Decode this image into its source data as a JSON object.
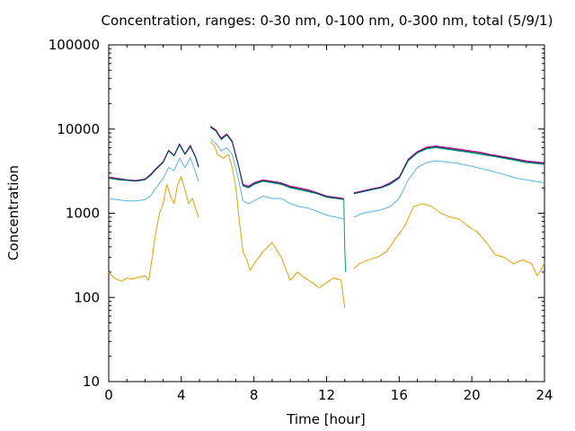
{
  "chart_data": {
    "type": "line",
    "title": "Concentration, ranges: 0-30 nm, 0-100 nm, 0-300 nm, total (5/9/1)",
    "xlabel": "Time [hour]",
    "ylabel": "Concentration",
    "xlim": [
      0,
      24
    ],
    "ylim": [
      10,
      100000
    ],
    "yscale": "log",
    "grid": false,
    "xticks": [
      "0",
      "4",
      "8",
      "12",
      "16",
      "20",
      "24"
    ],
    "xtick_values": [
      0,
      4,
      8,
      12,
      16,
      20,
      24
    ],
    "yticks": [
      "10",
      "100",
      "1000",
      "10000",
      "100000"
    ],
    "ytick_values": [
      10,
      100,
      1000,
      10000,
      100000
    ],
    "series": [
      {
        "color": "#e69f00",
        "x": [
          0,
          0.3,
          0.7,
          1.0,
          1.3,
          1.7,
          2.0,
          2.2,
          2.4,
          2.6,
          2.8,
          3.0,
          3.2,
          3.4,
          3.6,
          3.8,
          4.0,
          4.2,
          4.4,
          4.6,
          4.8,
          4.95,
          null,
          5.6,
          5.8,
          6.0,
          6.3,
          6.6,
          6.8,
          7.0,
          7.2,
          7.4,
          7.6,
          7.8,
          8.0,
          8.5,
          9.0,
          9.5,
          10.0,
          10.4,
          10.8,
          11.2,
          11.6,
          12.0,
          12.4,
          12.8,
          13.0,
          null,
          13.5,
          13.8,
          14.3,
          14.8,
          15.3,
          15.8,
          16.3,
          16.8,
          17.3,
          17.8,
          18.3,
          18.8,
          19.3,
          19.8,
          20.3,
          20.8,
          21.3,
          21.8,
          22.3,
          22.8,
          23.3,
          23.6,
          23.8,
          24.0
        ],
        "y": [
          200,
          170,
          155,
          170,
          165,
          175,
          180,
          160,
          300,
          600,
          1000,
          1300,
          2200,
          1600,
          1300,
          2200,
          2700,
          1900,
          1300,
          1500,
          1100,
          900,
          null,
          7000,
          6500,
          5000,
          4500,
          5000,
          3500,
          2000,
          800,
          350,
          280,
          210,
          250,
          350,
          450,
          300,
          160,
          200,
          170,
          150,
          130,
          150,
          170,
          160,
          75,
          null,
          220,
          250,
          280,
          300,
          350,
          500,
          700,
          1200,
          1300,
          1200,
          1000,
          900,
          850,
          700,
          600,
          450,
          320,
          300,
          250,
          280,
          250,
          180,
          210,
          260
        ]
      },
      {
        "color": "#56b4e9",
        "x": [
          0,
          0.5,
          1.0,
          1.5,
          2.0,
          2.3,
          2.6,
          3.0,
          3.3,
          3.6,
          3.9,
          4.2,
          4.5,
          4.8,
          4.95,
          null,
          5.6,
          5.9,
          6.2,
          6.5,
          6.8,
          7.1,
          7.4,
          7.7,
          8.0,
          8.5,
          9.0,
          9.5,
          10.0,
          10.5,
          11.0,
          11.5,
          12.0,
          12.5,
          13.0,
          null,
          13.5,
          14.0,
          14.5,
          15.0,
          15.5,
          16.0,
          16.5,
          17.0,
          17.5,
          18.0,
          18.5,
          19.0,
          19.5,
          20.0,
          20.5,
          21.0,
          21.5,
          22.0,
          22.5,
          23.0,
          23.5,
          24.0
        ],
        "y": [
          1500,
          1450,
          1400,
          1400,
          1450,
          1600,
          2000,
          2600,
          3500,
          3200,
          4500,
          3500,
          4600,
          3000,
          2400,
          null,
          7500,
          6800,
          5500,
          6000,
          5000,
          2800,
          1400,
          1300,
          1400,
          1600,
          1500,
          1500,
          1300,
          1200,
          1150,
          1050,
          950,
          900,
          850,
          null,
          900,
          1000,
          1050,
          1100,
          1200,
          1500,
          2500,
          3500,
          4000,
          4200,
          4100,
          4000,
          3800,
          3600,
          3400,
          3200,
          3000,
          2800,
          2600,
          2500,
          2400,
          2300
        ]
      },
      {
        "color": "#009e73",
        "x": [
          0,
          0.5,
          1.0,
          1.5,
          2.0,
          2.3,
          2.6,
          3.0,
          3.3,
          3.6,
          3.9,
          4.2,
          4.5,
          4.8,
          4.95,
          null,
          5.6,
          5.9,
          6.2,
          6.5,
          6.8,
          7.1,
          7.4,
          7.7,
          8.0,
          8.5,
          9.0,
          9.5,
          10.0,
          10.5,
          11.0,
          11.5,
          12.0,
          12.5,
          12.95,
          13.0,
          13.05,
          null,
          13.5,
          14.0,
          14.5,
          15.0,
          15.5,
          16.0,
          16.5,
          17.0,
          17.5,
          18.0,
          18.5,
          19.0,
          19.5,
          20.0,
          20.5,
          21.0,
          21.5,
          22.0,
          22.5,
          23.0,
          23.5,
          24.0
        ],
        "y": [
          2600,
          2500,
          2450,
          2400,
          2500,
          2800,
          3300,
          4000,
          5500,
          4800,
          6500,
          5000,
          6200,
          4500,
          3500,
          null,
          10500,
          9500,
          7500,
          8500,
          7000,
          4000,
          2100,
          2000,
          2200,
          2400,
          2300,
          2200,
          2000,
          1900,
          1800,
          1700,
          1550,
          1500,
          1450,
          400,
          200,
          null,
          1700,
          1800,
          1900,
          2000,
          2200,
          2600,
          4200,
          5200,
          5800,
          6000,
          5800,
          5600,
          5400,
          5200,
          5000,
          4800,
          4600,
          4400,
          4200,
          4000,
          3900,
          3800
        ]
      },
      {
        "color": "#cc0099",
        "x": [
          0,
          0.5,
          1.0,
          1.5,
          2.0,
          2.3,
          2.6,
          3.0,
          3.3,
          3.6,
          3.9,
          4.2,
          4.5,
          4.8,
          4.95,
          null,
          5.6,
          5.9,
          6.2,
          6.5,
          6.8,
          7.1,
          7.4,
          7.7,
          8.0,
          8.5,
          9.0,
          9.5,
          10.0,
          10.5,
          11.0,
          11.5,
          12.0,
          12.5,
          12.95,
          null,
          13.5,
          14.0,
          14.5,
          15.0,
          15.5,
          16.0,
          16.5,
          17.0,
          17.5,
          18.0,
          18.5,
          19.0,
          19.5,
          20.0,
          20.5,
          21.0,
          21.5,
          22.0,
          22.5,
          23.0,
          23.5,
          24.0
        ],
        "y": [
          2700,
          2600,
          2500,
          2450,
          2550,
          2900,
          3400,
          4100,
          5600,
          4900,
          6700,
          5100,
          6400,
          4600,
          3600,
          null,
          10800,
          9800,
          7800,
          8800,
          7200,
          4100,
          2200,
          2100,
          2300,
          2500,
          2400,
          2300,
          2100,
          2000,
          1900,
          1750,
          1600,
          1550,
          1500,
          null,
          1750,
          1850,
          1950,
          2050,
          2300,
          2700,
          4400,
          5400,
          6100,
          6300,
          6100,
          5900,
          5700,
          5500,
          5300,
          5000,
          4800,
          4600,
          4400,
          4200,
          4100,
          3950
        ]
      },
      {
        "color": "#0d3b5a",
        "x": [
          0,
          0.5,
          1.0,
          1.5,
          2.0,
          2.3,
          2.6,
          3.0,
          3.3,
          3.6,
          3.9,
          4.2,
          4.5,
          4.8,
          4.95,
          null,
          5.6,
          5.9,
          6.2,
          6.5,
          6.8,
          7.1,
          7.4,
          7.7,
          8.0,
          8.5,
          9.0,
          9.5,
          10.0,
          10.5,
          11.0,
          11.5,
          12.0,
          12.5,
          12.95,
          null,
          13.5,
          14.0,
          14.5,
          15.0,
          15.5,
          16.0,
          16.5,
          17.0,
          17.5,
          18.0,
          18.5,
          19.0,
          19.5,
          20.0,
          20.5,
          21.0,
          21.5,
          22.0,
          22.5,
          23.0,
          23.5,
          24.0
        ],
        "y": [
          2650,
          2550,
          2480,
          2420,
          2520,
          2850,
          3350,
          4050,
          5550,
          4850,
          6600,
          5050,
          6300,
          4550,
          3550,
          null,
          10600,
          9600,
          7600,
          8600,
          7100,
          4050,
          2150,
          2050,
          2250,
          2450,
          2350,
          2250,
          2050,
          1950,
          1850,
          1720,
          1570,
          1520,
          1470,
          null,
          1720,
          1820,
          1920,
          2020,
          2250,
          2650,
          4300,
          5300,
          5950,
          6150,
          5950,
          5750,
          5550,
          5350,
          5150,
          4900,
          4700,
          4500,
          4300,
          4100,
          4000,
          3880
        ]
      }
    ]
  }
}
